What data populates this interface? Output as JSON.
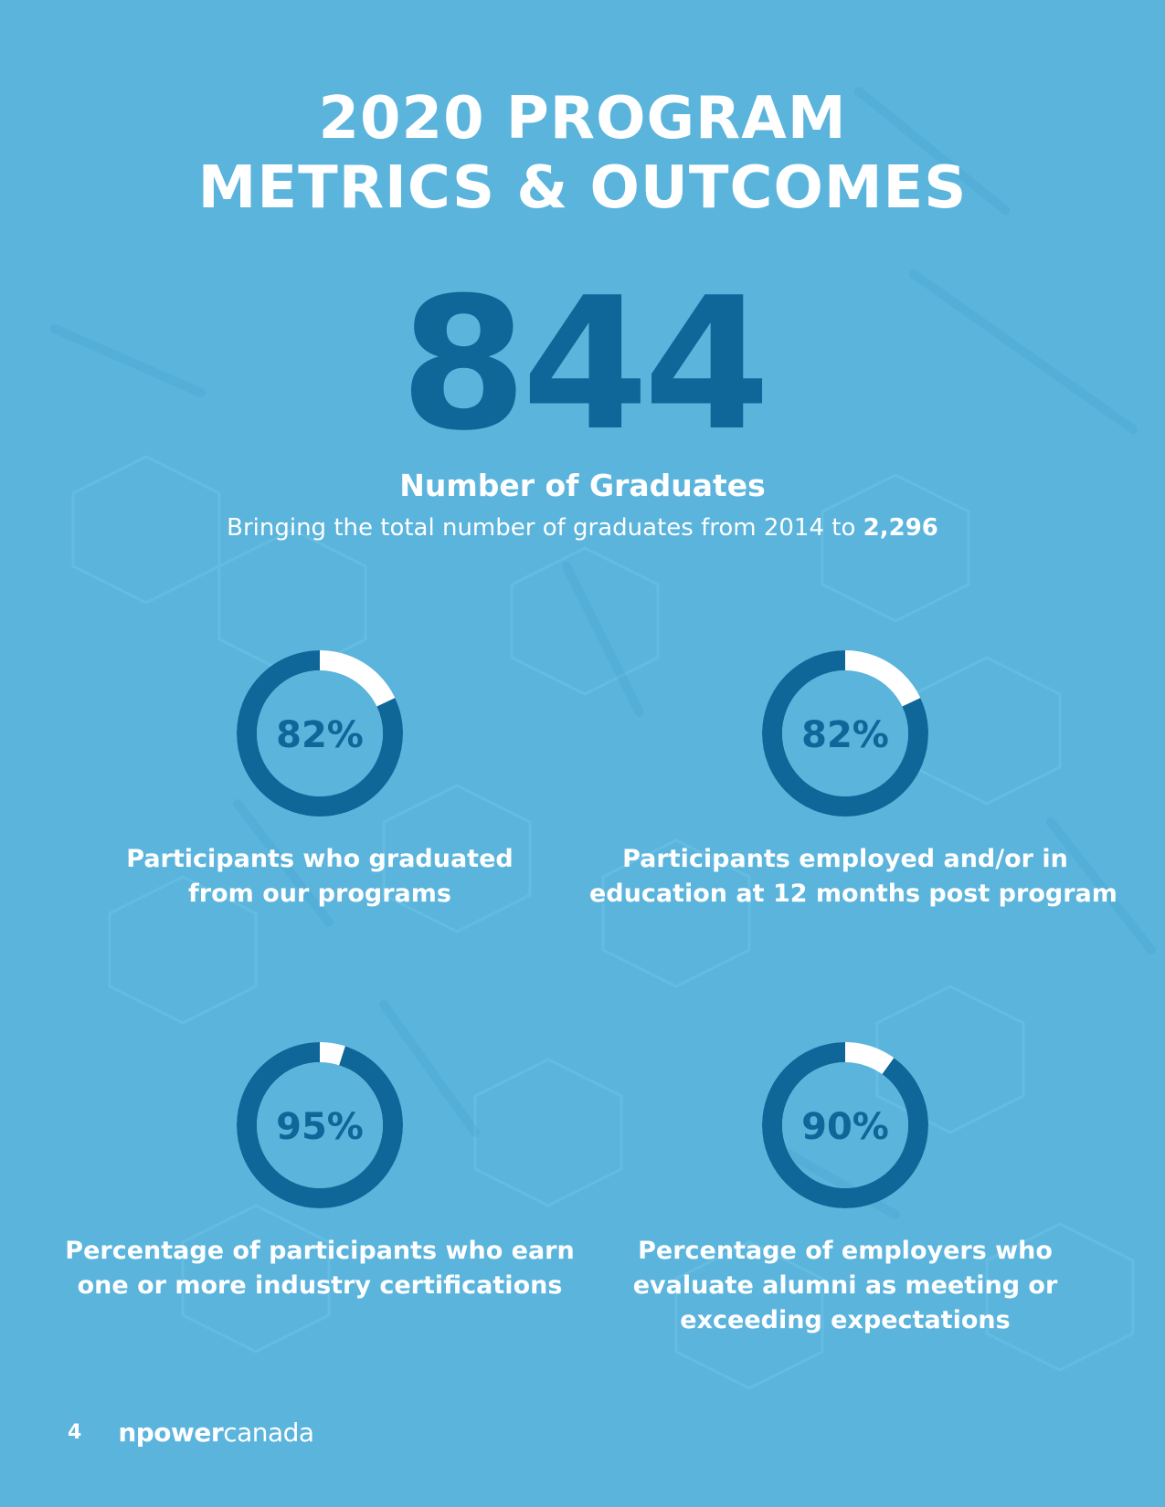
{
  "page": {
    "title_line1": "2020 PROGRAM",
    "title_line2": "METRICS & OUTCOMES",
    "page_number": "4"
  },
  "headline": {
    "value": "844",
    "label": "Number of Graduates",
    "subtext_prefix": "Bringing the total number of graduates from 2014 to ",
    "subtext_total": "2,296"
  },
  "metrics": [
    {
      "percent_label": "82%",
      "percent_value": 82,
      "caption_line1": "Participants who graduated",
      "caption_line2": "from our programs",
      "caption_line3": ""
    },
    {
      "percent_label": "82%",
      "percent_value": 82,
      "caption_line1": "Participants employed and/or in",
      "caption_line2": "education at 12 months post program",
      "caption_line3": ""
    },
    {
      "percent_label": "95%",
      "percent_value": 95,
      "caption_line1": "Percentage of participants who earn",
      "caption_line2": "one or more industry certifications",
      "caption_line3": ""
    },
    {
      "percent_label": "90%",
      "percent_value": 90,
      "caption_line1": "Percentage of employers who",
      "caption_line2": "evaluate alumni as meeting or",
      "caption_line3": "exceeding expectations"
    }
  ],
  "footer": {
    "logo_bold": "npower",
    "logo_light": "canada"
  },
  "colors": {
    "background": "#5ab4dc",
    "accent_dark_blue": "#0e6699",
    "ring_remainder": "#ffffff",
    "text": "#ffffff"
  }
}
